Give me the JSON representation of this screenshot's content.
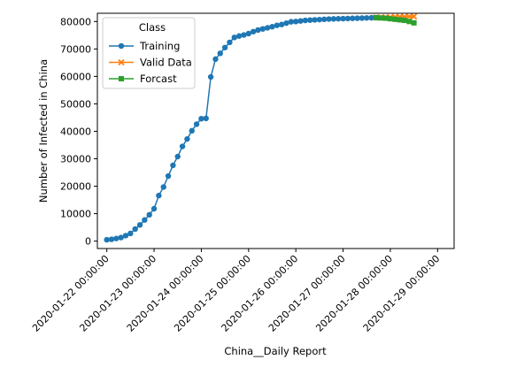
{
  "chart_data": {
    "type": "line",
    "title": "",
    "xlabel": "China__Daily Report",
    "ylabel": "Number of Infected in China",
    "ylim": [
      -2700,
      83000
    ],
    "xlim": [
      -0.2,
      7.35
    ],
    "grid": false,
    "legend_placement": "top-left",
    "legend_title": "Class",
    "x_ticks": [
      {
        "pos": 0,
        "label": "2020-01-22 00:00:00"
      },
      {
        "pos": 1,
        "label": "2020-01-23 00:00:00"
      },
      {
        "pos": 2,
        "label": "2020-01-24 00:00:00"
      },
      {
        "pos": 3,
        "label": "2020-01-25 00:00:00"
      },
      {
        "pos": 4,
        "label": "2020-01-26 00:00:00"
      },
      {
        "pos": 5,
        "label": "2020-01-27 00:00:00"
      },
      {
        "pos": 6,
        "label": "2020-01-28 00:00:00"
      },
      {
        "pos": 7,
        "label": "2020-01-29 00:00:00"
      }
    ],
    "y_ticks": [
      0,
      10000,
      20000,
      30000,
      40000,
      50000,
      60000,
      70000,
      80000
    ],
    "y_tick_labels": [
      "0",
      "10000",
      "20000",
      "30000",
      "40000",
      "50000",
      "60000",
      "70000",
      "80000"
    ],
    "series": [
      {
        "name": "Training",
        "color": "#1f77b4",
        "marker": "circle",
        "x": [
          0.0,
          0.1,
          0.2,
          0.3,
          0.4,
          0.5,
          0.6,
          0.7,
          0.8,
          0.9,
          1.0,
          1.1,
          1.2,
          1.3,
          1.4,
          1.5,
          1.6,
          1.7,
          1.8,
          1.9,
          2.0,
          2.1,
          2.2,
          2.3,
          2.4,
          2.5,
          2.6,
          2.7,
          2.8,
          2.9,
          3.0,
          3.1,
          3.2,
          3.3,
          3.4,
          3.5,
          3.6,
          3.7,
          3.8,
          3.9,
          4.0,
          4.1,
          4.2,
          4.3,
          4.4,
          4.5,
          4.6,
          4.7,
          4.8,
          4.9,
          5.0,
          5.1,
          5.2,
          5.3,
          5.4,
          5.5,
          5.6,
          5.7
        ],
        "y": [
          500,
          650,
          950,
          1300,
          2000,
          2800,
          4400,
          5900,
          7700,
          9600,
          11800,
          16600,
          19700,
          23700,
          27600,
          30800,
          34500,
          37200,
          40200,
          42600,
          44600,
          44700,
          59800,
          66300,
          68400,
          70500,
          72400,
          74200,
          74700,
          75100,
          75600,
          76300,
          76900,
          77300,
          77700,
          78100,
          78600,
          78900,
          79400,
          79900,
          80000,
          80200,
          80400,
          80500,
          80600,
          80700,
          80800,
          80900,
          80950,
          81000,
          81050,
          81100,
          81150,
          81200,
          81250,
          81300,
          81350,
          81400
        ]
      },
      {
        "name": "Valid Data",
        "color": "#ff7f0e",
        "marker": "x",
        "x": [
          5.7,
          5.8,
          5.9,
          6.0,
          6.1,
          6.2,
          6.3,
          6.4,
          6.5
        ],
        "y": [
          81450,
          81500,
          81550,
          81600,
          81650,
          81700,
          81750,
          81800,
          81850
        ]
      },
      {
        "name": "Forcast",
        "color": "#2ca02c",
        "marker": "square",
        "x": [
          5.7,
          5.8,
          5.9,
          6.0,
          6.1,
          6.2,
          6.3,
          6.4,
          6.5
        ],
        "y": [
          81400,
          81300,
          81200,
          81000,
          80800,
          80600,
          80400,
          80000,
          79500
        ]
      }
    ]
  }
}
